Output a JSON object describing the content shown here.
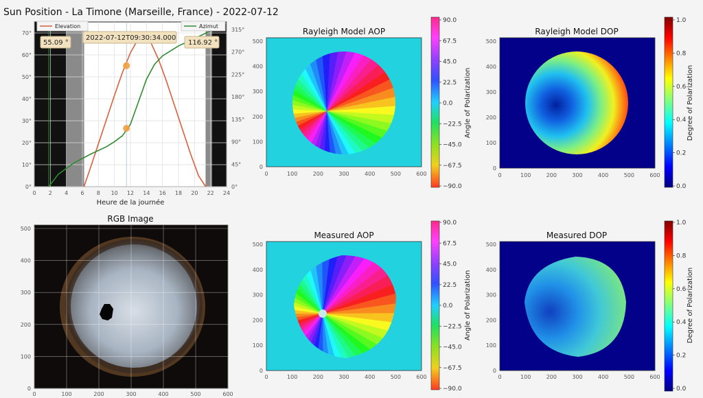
{
  "suptitle": "Sun Position - La Timone (Marseille, France) - 2022-07-12",
  "chart_data": [
    {
      "type": "line",
      "title": "",
      "xlabel": "Heure de la journée",
      "xlim": [
        0,
        24
      ],
      "xticks": [
        "0",
        "2",
        "4",
        "6",
        "8",
        "10",
        "12",
        "14",
        "16",
        "18",
        "20",
        "22",
        "24"
      ],
      "ylim_left": [
        0,
        75
      ],
      "yticks_left": [
        "0°",
        "10°",
        "20°",
        "30°",
        "40°",
        "50°",
        "60°",
        "70°"
      ],
      "ylim_right": [
        0,
        330
      ],
      "yticks_right": [
        "0°",
        "45°",
        "90°",
        "135°",
        "180°",
        "225°",
        "270°",
        "315°"
      ],
      "night_spans": [
        [
          0,
          6.2
        ],
        [
          21.4,
          24
        ]
      ],
      "series": [
        {
          "name": "Elevation",
          "color": "#d95f3b",
          "axis": "left",
          "x": [
            6.2,
            7,
            8,
            9,
            10,
            11,
            12,
            13,
            13.6,
            14.5,
            15.5,
            16.5,
            17.5,
            18.5,
            19.5,
            20.5,
            21.4
          ],
          "y": [
            0,
            8.5,
            19.5,
            30.5,
            41.5,
            52,
            61,
            67.5,
            69,
            66,
            58,
            48,
            37,
            26,
            15,
            5,
            0
          ]
        },
        {
          "name": "Azimut",
          "color": "#2e8b2e",
          "axis": "right",
          "x": [
            1.8,
            3,
            5,
            7,
            9,
            10,
            11,
            12,
            13,
            14,
            15,
            16,
            18,
            20,
            22,
            24
          ],
          "y": [
            0,
            25,
            48,
            65,
            80,
            90,
            102,
            125,
            170,
            215,
            245,
            262,
            282,
            297,
            312,
            328
          ]
        }
      ],
      "markers": [
        {
          "series": "Elevation",
          "x": 11.5,
          "y": 55.09
        },
        {
          "series": "Azimut",
          "x": 11.5,
          "y": 116.92
        }
      ],
      "cursor_x": 11.5,
      "annotations": {
        "elevation": "55.09 °",
        "time": "2022-07-12T09:30:34.000",
        "azimut": "116.92 °"
      }
    },
    {
      "type": "heatmap",
      "title": "Rayleigh Model AOP",
      "xticks": [
        "0",
        "100",
        "200",
        "300",
        "400",
        "500",
        "600"
      ],
      "yticks": [
        "0",
        "100",
        "200",
        "300",
        "400",
        "500"
      ],
      "colorbar": {
        "label": "Angle of Polarization",
        "ticks": [
          "90.0",
          "67.5",
          "45.0",
          "22.5",
          "0.0",
          "−22.5",
          "−45.0",
          "−67.5",
          "−90.0"
        ]
      }
    },
    {
      "type": "heatmap",
      "title": "Rayleigh Model DOP",
      "xticks": [
        "0",
        "100",
        "200",
        "300",
        "400",
        "500",
        "600"
      ],
      "yticks": [
        "0",
        "100",
        "200",
        "300",
        "400",
        "500"
      ],
      "colorbar": {
        "label": "Degree of Polarization",
        "ticks": [
          "1.0",
          "0.8",
          "0.6",
          "0.4",
          "0.2",
          "0.0"
        ]
      }
    },
    {
      "type": "heatmap",
      "title": "RGB Image",
      "xticks": [
        "0",
        "100",
        "200",
        "300",
        "400",
        "500",
        "600"
      ],
      "yticks": [
        "0",
        "100",
        "200",
        "300",
        "400",
        "500"
      ]
    },
    {
      "type": "heatmap",
      "title": "Measured AOP",
      "xticks": [
        "0",
        "100",
        "200",
        "300",
        "400",
        "500",
        "600"
      ],
      "yticks": [
        "0",
        "100",
        "200",
        "300",
        "400",
        "500"
      ],
      "colorbar": {
        "label": "Angle of Polarization",
        "ticks": [
          "90.0",
          "67.5",
          "45.0",
          "22.5",
          "0.0",
          "−22.5",
          "−45.0",
          "−67.5",
          "−90.0"
        ]
      }
    },
    {
      "type": "heatmap",
      "title": "Measured DOP",
      "xticks": [
        "0",
        "100",
        "200",
        "300",
        "400",
        "500",
        "600"
      ],
      "yticks": [
        "0",
        "100",
        "200",
        "300",
        "400",
        "500"
      ],
      "colorbar": {
        "label": "Degree of Polarization",
        "ticks": [
          "1.0",
          "0.8",
          "0.6",
          "0.4",
          "0.2",
          "0.0"
        ]
      }
    }
  ]
}
